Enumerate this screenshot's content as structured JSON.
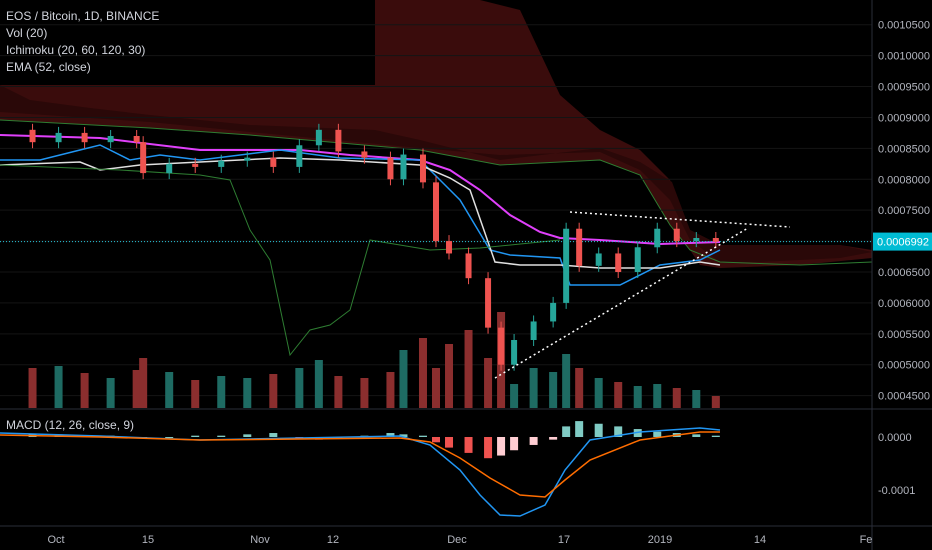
{
  "header": {
    "symbol_line": "EOS / Bitcoin, 1D, BINANCE",
    "indicators": [
      "Vol (20)",
      "Ichimoku (20, 60, 120, 30)",
      "EMA (52, close)"
    ]
  },
  "macd": {
    "label": "MACD (12, 26, close, 9)",
    "axis_ticks": [
      {
        "value": 0,
        "label": "0.0000"
      },
      {
        "value": -0.0001,
        "label": "-0.0001"
      }
    ]
  },
  "price_axis": {
    "ticks": [
      "0.0010500",
      "0.0010000",
      "0.0009500",
      "0.0009000",
      "0.0008500",
      "0.0008000",
      "0.0007500",
      "0.0007000",
      "0.0006500",
      "0.0006000",
      "0.0005500",
      "0.0005000",
      "0.0004500"
    ],
    "current_price": "0.0006992"
  },
  "time_axis": {
    "ticks": [
      "Oct",
      "15",
      "Nov",
      "12",
      "Dec",
      "17",
      "2019",
      "14",
      "Fe"
    ]
  },
  "colors": {
    "up": "#26a69a",
    "down": "#ef5350",
    "ema": "#e040fb",
    "tenkan": "#2196f3",
    "kijun": "#e0e0e0",
    "chikou": "#2e7d32",
    "cloud_bear": "#3a0c0c",
    "cloud_bull": "#0b2a12",
    "macd_line": "#2196f3",
    "signal_line": "#ff6d00",
    "price_line": "#26c6da"
  },
  "chart_data": {
    "type": "candlestick",
    "symbol": "EOS / Bitcoin",
    "interval": "1D",
    "exchange": "BINANCE",
    "price_range": [
      0.00043,
      0.00109
    ],
    "current_price": 0.0006992,
    "candles": [
      {
        "date": "2018-09-25",
        "o": 0.00088,
        "c": 0.00086
      },
      {
        "date": "2018-09-29",
        "o": 0.00086,
        "c": 0.000875
      },
      {
        "date": "2018-10-03",
        "o": 0.000875,
        "c": 0.00086
      },
      {
        "date": "2018-10-07",
        "o": 0.00086,
        "c": 0.00087
      },
      {
        "date": "2018-10-11",
        "o": 0.00087,
        "c": 0.00086
      },
      {
        "date": "2018-10-12",
        "o": 0.00086,
        "c": 0.00081
      },
      {
        "date": "2018-10-16",
        "o": 0.00081,
        "c": 0.000825
      },
      {
        "date": "2018-10-20",
        "o": 0.000825,
        "c": 0.00082
      },
      {
        "date": "2018-10-24",
        "o": 0.00082,
        "c": 0.00083
      },
      {
        "date": "2018-10-28",
        "o": 0.00083,
        "c": 0.000835
      },
      {
        "date": "2018-11-01",
        "o": 0.000835,
        "c": 0.00082
      },
      {
        "date": "2018-11-05",
        "o": 0.00082,
        "c": 0.000855
      },
      {
        "date": "2018-11-08",
        "o": 0.000855,
        "c": 0.00088
      },
      {
        "date": "2018-11-11",
        "o": 0.00088,
        "c": 0.000845
      },
      {
        "date": "2018-11-15",
        "o": 0.000845,
        "c": 0.000835
      },
      {
        "date": "2018-11-19",
        "o": 0.000835,
        "c": 0.0008
      },
      {
        "date": "2018-11-21",
        "o": 0.0008,
        "c": 0.00084
      },
      {
        "date": "2018-11-24",
        "o": 0.00084,
        "c": 0.000795
      },
      {
        "date": "2018-11-26",
        "o": 0.000795,
        "c": 0.0007
      },
      {
        "date": "2018-11-28",
        "o": 0.0007,
        "c": 0.00068
      },
      {
        "date": "2018-12-01",
        "o": 0.00068,
        "c": 0.00064
      },
      {
        "date": "2018-12-04",
        "o": 0.00064,
        "c": 0.00056
      },
      {
        "date": "2018-12-06",
        "o": 0.00056,
        "c": 0.0005
      },
      {
        "date": "2018-12-08",
        "o": 0.0005,
        "c": 0.00054
      },
      {
        "date": "2018-12-11",
        "o": 0.00054,
        "c": 0.00057
      },
      {
        "date": "2018-12-14",
        "o": 0.00057,
        "c": 0.0006
      },
      {
        "date": "2018-12-16",
        "o": 0.0006,
        "c": 0.00072
      },
      {
        "date": "2018-12-18",
        "o": 0.00072,
        "c": 0.00066
      },
      {
        "date": "2018-12-21",
        "o": 0.00066,
        "c": 0.00068
      },
      {
        "date": "2018-12-24",
        "o": 0.00068,
        "c": 0.00065
      },
      {
        "date": "2018-12-27",
        "o": 0.00065,
        "c": 0.00069
      },
      {
        "date": "2018-12-30",
        "o": 0.00069,
        "c": 0.00072
      },
      {
        "date": "2019-01-02",
        "o": 0.00072,
        "c": 0.0007
      },
      {
        "date": "2019-01-05",
        "o": 0.0007,
        "c": 0.000705
      },
      {
        "date": "2019-01-08",
        "o": 0.000705,
        "c": 0.000699
      }
    ],
    "volume": [
      40,
      42,
      35,
      30,
      38,
      50,
      36,
      28,
      32,
      30,
      34,
      40,
      48,
      32,
      30,
      36,
      58,
      70,
      40,
      64,
      78,
      50,
      96,
      24,
      40,
      36,
      54,
      40,
      30,
      26,
      22,
      24,
      20,
      18,
      12
    ]
  }
}
